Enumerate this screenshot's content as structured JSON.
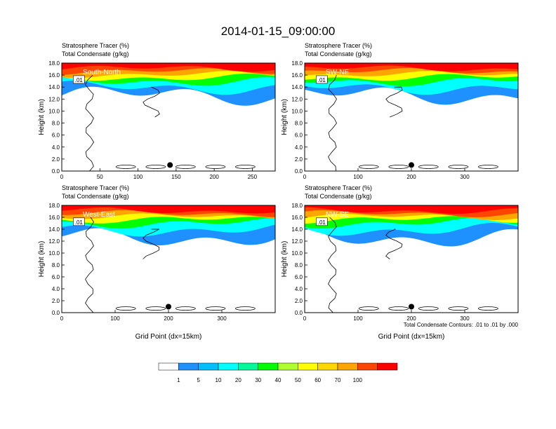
{
  "title": "2014-01-15_09:00:00",
  "colors": {
    "levels": [
      "#ffffff",
      "#1e90ff",
      "#00bfff",
      "#00ffff",
      "#00fa9a",
      "#00ff00",
      "#adff2f",
      "#ffff00",
      "#ffd700",
      "#ffa500",
      "#ff4500",
      "#ff0000"
    ],
    "contour": "#000000"
  },
  "colorbar": {
    "labels": [
      "1",
      "5",
      "10",
      "20",
      "30",
      "40",
      "50",
      "60",
      "70",
      "100"
    ]
  },
  "chart_data": [
    {
      "type": "heatmap",
      "panel": "top-left",
      "label": "South-North",
      "title_line1": "Stratosphere Tracer   (%)",
      "title_line2": "Total Condensate   (g/kg)",
      "ylabel": "Height (km)",
      "xlabel": "",
      "xlim": [
        0,
        280
      ],
      "ylim": [
        0,
        18
      ],
      "xticks": [
        "0",
        "50",
        "100",
        "150",
        "200",
        "250"
      ],
      "yticks": [
        "0.0",
        "2.0",
        "4.0",
        "6.0",
        "8.0",
        "10.0",
        "12.0",
        "14.0",
        "16.0",
        "18.0"
      ],
      "marker_x": 142,
      "contour_label": ".01",
      "footnote": ""
    },
    {
      "type": "heatmap",
      "panel": "top-right",
      "label": "SW-NE",
      "title_line1": "Stratosphere Tracer   (%)",
      "title_line2": "Total Condensate   (g/kg)",
      "ylabel": "Height (km)",
      "xlabel": "",
      "xlim": [
        0,
        400
      ],
      "ylim": [
        0,
        18
      ],
      "xticks": [
        "0",
        "100",
        "200",
        "300"
      ],
      "yticks": [
        "0.0",
        "2.0",
        "4.0",
        "6.0",
        "8.0",
        "10.0",
        "12.0",
        "14.0",
        "16.0",
        "18.0"
      ],
      "marker_x": 200,
      "contour_label": ".01",
      "footnote": ""
    },
    {
      "type": "heatmap",
      "panel": "bottom-left",
      "label": "West-East",
      "title_line1": "Stratosphere Tracer   (%)",
      "title_line2": "Total Condensate   (g/kg)",
      "ylabel": "Height (km)",
      "xlabel": "Grid Point (dx=15km)",
      "xlim": [
        0,
        400
      ],
      "ylim": [
        0,
        18
      ],
      "xticks": [
        "0",
        "100",
        "200",
        "300"
      ],
      "yticks": [
        "0.0",
        "2.0",
        "4.0",
        "6.0",
        "8.0",
        "10.0",
        "12.0",
        "14.0",
        "16.0",
        "18.0"
      ],
      "marker_x": 200,
      "contour_label": ".01",
      "footnote": ""
    },
    {
      "type": "heatmap",
      "panel": "bottom-right",
      "label": "NW-SE",
      "title_line1": "Stratosphere Tracer   (%)",
      "title_line2": "Total Condensate   (g/kg)",
      "ylabel": "Height (km)",
      "xlabel": "Grid Point (dx=15km)",
      "xlim": [
        0,
        400
      ],
      "ylim": [
        0,
        18
      ],
      "xticks": [
        "0",
        "100",
        "200",
        "300"
      ],
      "yticks": [
        "0.0",
        "2.0",
        "4.0",
        "6.0",
        "8.0",
        "10.0",
        "12.0",
        "14.0",
        "16.0",
        "18.0"
      ],
      "marker_x": 200,
      "contour_label": ".01",
      "footnote": "Total Condensate Contours: .01 to .01 by .000"
    }
  ]
}
